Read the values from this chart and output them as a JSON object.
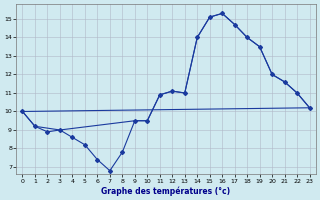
{
  "background_color": "#d0eaf0",
  "line_color": "#1a3a9e",
  "grid_color": "#b0b8c8",
  "xlabel": "Graphe des températures (°c)",
  "xlim": [
    -0.5,
    23.5
  ],
  "ylim": [
    6.6,
    15.8
  ],
  "xticks": [
    0,
    1,
    2,
    3,
    4,
    5,
    6,
    7,
    8,
    9,
    10,
    11,
    12,
    13,
    14,
    15,
    16,
    17,
    18,
    19,
    20,
    21,
    22,
    23
  ],
  "yticks": [
    7,
    8,
    9,
    10,
    11,
    12,
    13,
    14,
    15
  ],
  "curve_x": [
    0,
    1,
    2,
    3,
    4,
    5,
    6,
    7,
    8,
    9,
    10,
    11,
    12,
    13,
    14,
    15,
    16,
    17,
    18,
    19,
    20,
    21,
    22,
    23
  ],
  "curve_y": [
    10.0,
    9.2,
    8.9,
    9.0,
    8.6,
    8.2,
    7.4,
    6.8,
    7.8,
    9.5,
    9.5,
    10.9,
    11.1,
    11.0,
    14.0,
    15.1,
    15.3,
    14.7,
    14.0,
    13.5,
    12.0,
    11.6,
    11.0,
    10.2
  ],
  "line2_x": [
    0,
    23
  ],
  "line2_y": [
    10.0,
    10.2
  ],
  "line3_x": [
    0,
    1,
    3,
    9,
    10,
    11,
    12,
    13,
    14,
    15,
    16,
    17,
    18,
    19,
    20,
    21,
    22,
    23
  ],
  "line3_y": [
    10.0,
    9.2,
    9.0,
    9.5,
    9.5,
    10.9,
    11.1,
    11.0,
    14.0,
    15.1,
    15.3,
    14.7,
    14.0,
    13.5,
    12.0,
    11.6,
    11.0,
    10.2
  ]
}
